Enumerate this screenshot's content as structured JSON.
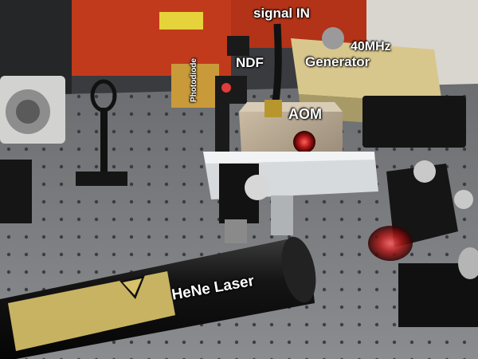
{
  "labels": {
    "signal_in": "signal IN",
    "ndf": "NDF",
    "freq": "40MHz",
    "generator": "Generator",
    "aom": "AOM",
    "photodiode": "Photodiode",
    "hene_laser": "HeNe Laser"
  },
  "colors": {
    "optical_table": "#7d7f82",
    "table_holes": "#2f3134",
    "red_enclosure": "#c23a1c",
    "aom_body": "#b9aa93",
    "laser_tube": "#141414",
    "laser_warning_label": "#d8c16a",
    "laser_beam_glow": "#e23b3b"
  }
}
